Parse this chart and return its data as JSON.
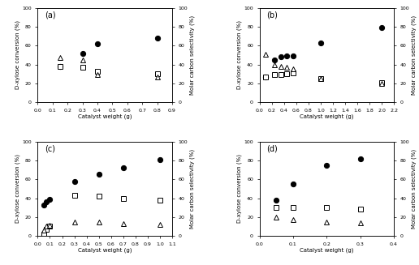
{
  "subplots": [
    {
      "label": "(a)",
      "xlim": [
        0.0,
        0.9
      ],
      "xticks": [
        0.0,
        0.1,
        0.2,
        0.3,
        0.4,
        0.5,
        0.6,
        0.7,
        0.8,
        0.9
      ],
      "ylim": [
        0,
        100
      ],
      "yticks": [
        0,
        20,
        40,
        60,
        80,
        100
      ],
      "conversion": {
        "x": [
          0.15,
          0.3,
          0.4,
          0.8
        ],
        "y": [
          38,
          52,
          62,
          68
        ]
      },
      "furfural": {
        "x": [
          0.15,
          0.3,
          0.4,
          0.8
        ],
        "y": [
          38,
          37,
          33,
          30
        ]
      },
      "lyxose": {
        "x": [
          0.15,
          0.3,
          0.4,
          0.8
        ],
        "y": [
          47,
          45,
          29,
          27
        ]
      }
    },
    {
      "label": "(b)",
      "xlim": [
        0.0,
        2.2
      ],
      "xticks": [
        0.0,
        0.2,
        0.4,
        0.6,
        0.8,
        1.0,
        1.2,
        1.4,
        1.6,
        1.8,
        2.0,
        2.2
      ],
      "ylim": [
        0,
        100
      ],
      "yticks": [
        0,
        20,
        40,
        60,
        80,
        100
      ],
      "conversion": {
        "x": [
          0.1,
          0.25,
          0.35,
          0.45,
          0.55,
          1.0,
          2.0
        ],
        "y": [
          27,
          45,
          48,
          49,
          49,
          63,
          79
        ]
      },
      "furfural": {
        "x": [
          0.1,
          0.25,
          0.35,
          0.45,
          0.55,
          1.0,
          2.0
        ],
        "y": [
          27,
          29,
          29,
          30,
          31,
          25,
          21
        ]
      },
      "lyxose": {
        "x": [
          0.1,
          0.25,
          0.35,
          0.45,
          0.55,
          1.0,
          2.0
        ],
        "y": [
          51,
          40,
          38,
          37,
          35,
          25,
          20
        ]
      }
    },
    {
      "label": "(c)",
      "xlim": [
        0.0,
        1.1
      ],
      "xticks": [
        0.0,
        0.1,
        0.2,
        0.3,
        0.4,
        0.5,
        0.6,
        0.7,
        0.8,
        0.9,
        1.0,
        1.1
      ],
      "ylim": [
        0,
        100
      ],
      "yticks": [
        0,
        20,
        40,
        60,
        80,
        100
      ],
      "conversion": {
        "x": [
          0.05,
          0.07,
          0.1,
          0.3,
          0.5,
          0.7,
          1.0
        ],
        "y": [
          33,
          36,
          39,
          58,
          65,
          72,
          81
        ]
      },
      "furfural": {
        "x": [
          0.05,
          0.07,
          0.1,
          0.3,
          0.5,
          0.7,
          1.0
        ],
        "y": [
          2,
          7,
          10,
          43,
          42,
          40,
          38
        ]
      },
      "lyxose": {
        "x": [
          0.05,
          0.07,
          0.1,
          0.3,
          0.5,
          0.7,
          1.0
        ],
        "y": [
          6,
          10,
          11,
          15,
          15,
          13,
          12
        ]
      }
    },
    {
      "label": "(d)",
      "xlim": [
        0.0,
        0.4
      ],
      "xticks": [
        0.0,
        0.1,
        0.2,
        0.3,
        0.4
      ],
      "ylim": [
        0,
        100
      ],
      "yticks": [
        0,
        20,
        40,
        60,
        80,
        100
      ],
      "conversion": {
        "x": [
          0.05,
          0.1,
          0.2,
          0.3
        ],
        "y": [
          38,
          55,
          75,
          82
        ]
      },
      "furfural": {
        "x": [
          0.05,
          0.1,
          0.2,
          0.3
        ],
        "y": [
          30,
          30,
          30,
          28
        ]
      },
      "lyxose": {
        "x": [
          0.05,
          0.1,
          0.2,
          0.3
        ],
        "y": [
          20,
          17,
          15,
          14
        ]
      }
    }
  ],
  "xlabel": "Catalyst weight (g)",
  "ylabel_left": "D-xylose conversion (%)",
  "ylabel_right": "Molar carbon selectivity (%)",
  "marker_conversion": "o",
  "marker_furfural": "s",
  "marker_lyxose": "^",
  "markersize": 4.5,
  "markerfacecolor_conversion": "black",
  "markerfacecolor_open": "white",
  "markeredgecolor": "black",
  "markeredgewidth": 0.7,
  "fontsize_label": 5,
  "fontsize_tick": 4.5,
  "fontsize_sublabel": 7,
  "bg_color": "#f0f0f0"
}
